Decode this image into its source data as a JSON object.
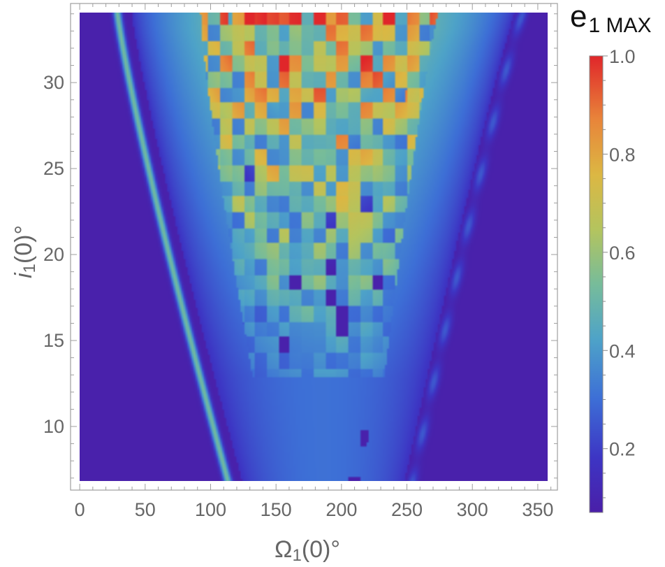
{
  "chart_data": {
    "type": "heatmap",
    "title": "",
    "xlabel": {
      "main": "Ω",
      "sub": "1",
      "tail": "(0)°"
    },
    "ylabel": {
      "main": "i",
      "sub": "1",
      "tail": "(0)°"
    },
    "xlim": [
      -7,
      365
    ],
    "ylim": [
      6.3,
      34.6
    ],
    "data_xlim": [
      0,
      360
    ],
    "data_ylim": [
      7,
      34
    ],
    "x_ticks": [
      0,
      50,
      100,
      150,
      200,
      250,
      300,
      350
    ],
    "y_ticks": [
      10,
      15,
      20,
      25,
      30
    ],
    "grid": false,
    "colorbar": {
      "title_main": "e",
      "title_sub": "1 MAX",
      "range": [
        0.07,
        1.0
      ],
      "ticks": [
        0.2,
        0.4,
        0.6,
        0.8,
        1.0
      ],
      "tick_labels": [
        "0.2",
        "0.4",
        "0.6",
        "0.8",
        "1.0"
      ],
      "placement": "right"
    },
    "colormap": [
      [
        0.0,
        "#4a1fa8"
      ],
      [
        0.12,
        "#3d35c4"
      ],
      [
        0.25,
        "#3d6fd6"
      ],
      [
        0.38,
        "#4ea3c8"
      ],
      [
        0.5,
        "#77bc9a"
      ],
      [
        0.62,
        "#b4c45e"
      ],
      [
        0.74,
        "#dcb743"
      ],
      [
        0.86,
        "#e8853a"
      ],
      [
        1.0,
        "#e0262a"
      ]
    ],
    "description_values": {
      "background_level": 0.08,
      "left_ridge_level": 0.45,
      "wedge_core_level": 0.55,
      "peak_level": 1.0
    }
  }
}
